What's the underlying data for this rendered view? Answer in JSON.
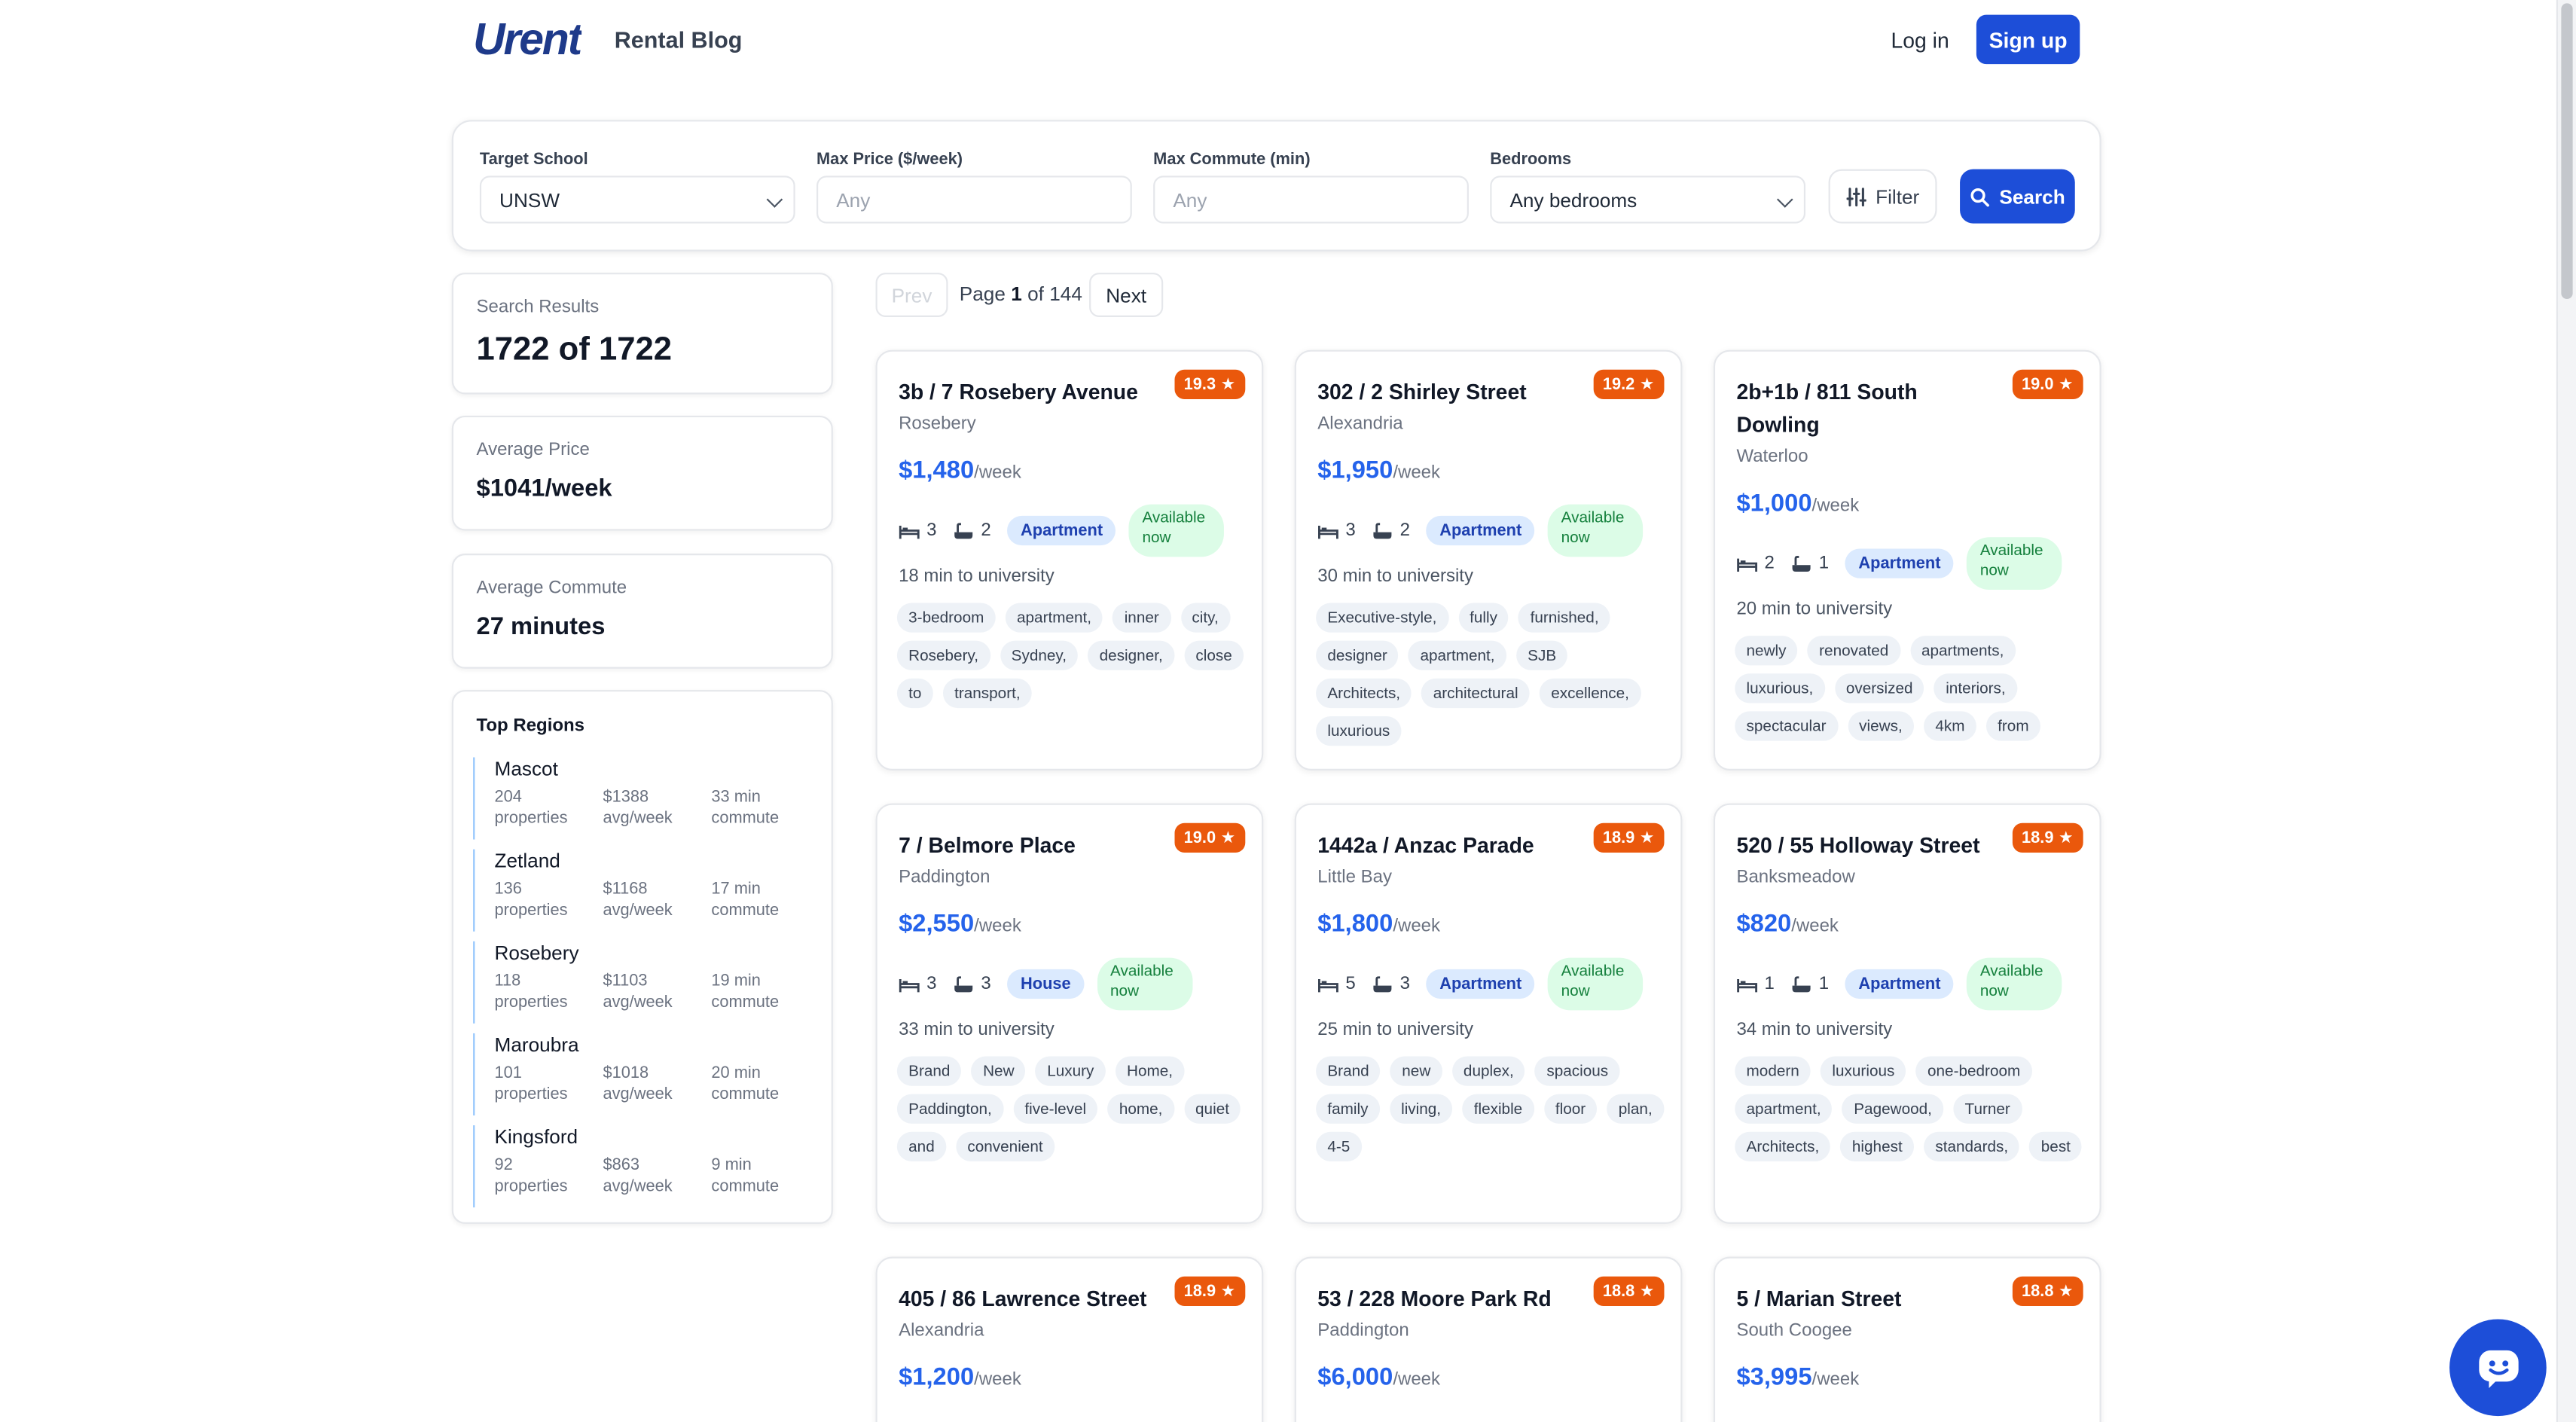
{
  "header": {
    "logo_text": "Urent",
    "blog_link": "Rental Blog",
    "login_label": "Log in",
    "signup_label": "Sign up"
  },
  "search": {
    "school_label": "Target School",
    "school_value": "UNSW",
    "max_price_label": "Max Price ($/week)",
    "max_price_placeholder": "Any",
    "max_commute_label": "Max Commute (min)",
    "max_commute_placeholder": "Any",
    "bedrooms_label": "Bedrooms",
    "bedrooms_value": "Any bedrooms",
    "filter_label": "Filter",
    "search_label": "Search"
  },
  "summary": {
    "results_label": "Search Results",
    "results_value": "1722 of 1722",
    "avg_price_label": "Average Price",
    "avg_price_value": "$1041/week",
    "avg_commute_label": "Average Commute",
    "avg_commute_value": "27 minutes"
  },
  "regions": {
    "title": "Top Regions",
    "items": [
      {
        "name": "Mascot",
        "count": "204",
        "count_label": "properties",
        "price": "$1388",
        "price_label": "avg/week",
        "commute": "33 min",
        "commute_label": "commute"
      },
      {
        "name": "Zetland",
        "count": "136",
        "count_label": "properties",
        "price": "$1168",
        "price_label": "avg/week",
        "commute": "17 min",
        "commute_label": "commute"
      },
      {
        "name": "Rosebery",
        "count": "118",
        "count_label": "properties",
        "price": "$1103",
        "price_label": "avg/week",
        "commute": "19 min",
        "commute_label": "commute"
      },
      {
        "name": "Maroubra",
        "count": "101",
        "count_label": "properties",
        "price": "$1018",
        "price_label": "avg/week",
        "commute": "20 min",
        "commute_label": "commute"
      },
      {
        "name": "Kingsford",
        "count": "92",
        "count_label": "properties",
        "price": "$863",
        "price_label": "avg/week",
        "commute": "9 min",
        "commute_label": "commute"
      }
    ]
  },
  "pagination": {
    "prev_label": "Prev",
    "page_word": "Page",
    "current": "1",
    "of_word": "of",
    "total": "144",
    "next_label": "Next"
  },
  "listings": [
    {
      "title": "3b / 7 Rosebery Avenue",
      "suburb": "Rosebery",
      "score": "19.3",
      "price": "$1,480",
      "per": "/week",
      "beds": "3",
      "baths": "2",
      "type": "Apartment",
      "availability": "Available now",
      "commute": "18 min to university",
      "tags": [
        "3-bedroom",
        "apartment,",
        "inner",
        "city,",
        "Rosebery,",
        "Sydney,",
        "designer,",
        "close",
        "to",
        "transport,"
      ]
    },
    {
      "title": "302 / 2 Shirley Street",
      "suburb": "Alexandria",
      "score": "19.2",
      "price": "$1,950",
      "per": "/week",
      "beds": "3",
      "baths": "2",
      "type": "Apartment",
      "availability": "Available now",
      "commute": "30 min to university",
      "tags": [
        "Executive-style,",
        "fully",
        "furnished,",
        "designer",
        "apartment,",
        "SJB",
        "Architects,",
        "architectural",
        "excellence,",
        "luxurious"
      ]
    },
    {
      "title": "2b+1b / 811 South Dowling",
      "suburb": "Waterloo",
      "score": "19.0",
      "price": "$1,000",
      "per": "/week",
      "beds": "2",
      "baths": "1",
      "type": "Apartment",
      "availability": "Available now",
      "commute": "20 min to university",
      "tags": [
        "newly",
        "renovated",
        "apartments,",
        "luxurious,",
        "oversized",
        "interiors,",
        "spectacular",
        "views,",
        "4km",
        "from"
      ]
    },
    {
      "title": "7 / Belmore Place",
      "suburb": "Paddington",
      "score": "19.0",
      "price": "$2,550",
      "per": "/week",
      "beds": "3",
      "baths": "3",
      "type": "House",
      "availability": "Available now",
      "commute": "33 min to university",
      "tags": [
        "Brand",
        "New",
        "Luxury",
        "Home,",
        "Paddington,",
        "five-level",
        "home,",
        "quiet",
        "and",
        "convenient"
      ]
    },
    {
      "title": "1442a / Anzac Parade",
      "suburb": "Little Bay",
      "score": "18.9",
      "price": "$1,800",
      "per": "/week",
      "beds": "5",
      "baths": "3",
      "type": "Apartment",
      "availability": "Available now",
      "commute": "25 min to university",
      "tags": [
        "Brand",
        "new",
        "duplex,",
        "spacious",
        "family",
        "living,",
        "flexible",
        "floor",
        "plan,",
        "4-5"
      ]
    },
    {
      "title": "520 / 55 Holloway Street",
      "suburb": "Banksmeadow",
      "score": "18.9",
      "price": "$820",
      "per": "/week",
      "beds": "1",
      "baths": "1",
      "type": "Apartment",
      "availability": "Available now",
      "commute": "34 min to university",
      "tags": [
        "modern",
        "luxurious",
        "one-bedroom",
        "apartment,",
        "Pagewood,",
        "Turner",
        "Architects,",
        "highest",
        "standards,",
        "best"
      ]
    },
    {
      "title": "405 / 86 Lawrence Street",
      "suburb": "Alexandria",
      "score": "18.9",
      "price": "$1,200",
      "per": "/week"
    },
    {
      "title": "53 / 228 Moore Park Rd",
      "suburb": "Paddington",
      "score": "18.8",
      "price": "$6,000",
      "per": "/week"
    },
    {
      "title": "5 / Marian Street",
      "suburb": "South Coogee",
      "score": "18.8",
      "price": "$3,995",
      "per": "/week"
    }
  ],
  "colors": {
    "primary": "#1d4ed8",
    "price": "#2563eb",
    "score": "#ea580c",
    "available_bg": "#dcfce7",
    "available_text": "#15803d",
    "type_bg": "#dbeafe"
  }
}
